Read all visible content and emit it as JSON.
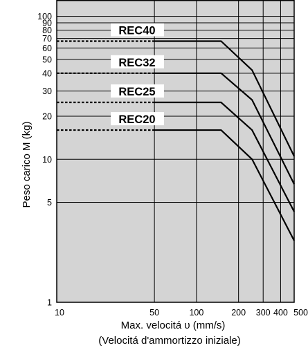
{
  "chart_data": {
    "type": "line",
    "xlabel": "Max. velocitá υ (mm/s)",
    "xlabel2": "(Velocitá d'ammortizzo iniziale)",
    "ylabel": "Peso carico  M (kg)",
    "xscale": "log",
    "yscale": "log",
    "xlim": [
      10,
      500
    ],
    "ylim": [
      1,
      130
    ],
    "grid": true,
    "x_ticks": [
      10,
      50,
      100,
      200,
      300,
      400,
      500
    ],
    "x_tick_labels": [
      "10",
      "50",
      "100",
      "200",
      "300",
      "400",
      "500"
    ],
    "y_ticks": [
      1,
      5,
      10,
      20,
      30,
      40,
      50,
      60,
      70,
      80,
      90,
      100
    ],
    "y_tick_labels": [
      "1",
      "5",
      "10",
      "20",
      "30",
      "40",
      "50",
      "60",
      "70",
      "80",
      "90",
      "100"
    ],
    "series": [
      {
        "name": "REC40",
        "x": [
          10,
          50,
          150,
          250,
          500
        ],
        "y": [
          67,
          67,
          67,
          42,
          10.5
        ]
      },
      {
        "name": "REC32",
        "x": [
          10,
          50,
          150,
          250,
          500
        ],
        "y": [
          40,
          40,
          40,
          26,
          6.7
        ]
      },
      {
        "name": "REC25",
        "x": [
          10,
          50,
          150,
          250,
          500
        ],
        "y": [
          25,
          25,
          25,
          16,
          4.3
        ]
      },
      {
        "name": "REC20",
        "x": [
          10,
          50,
          150,
          250,
          500
        ],
        "y": [
          16,
          16,
          16,
          10,
          2.7
        ]
      }
    ]
  }
}
